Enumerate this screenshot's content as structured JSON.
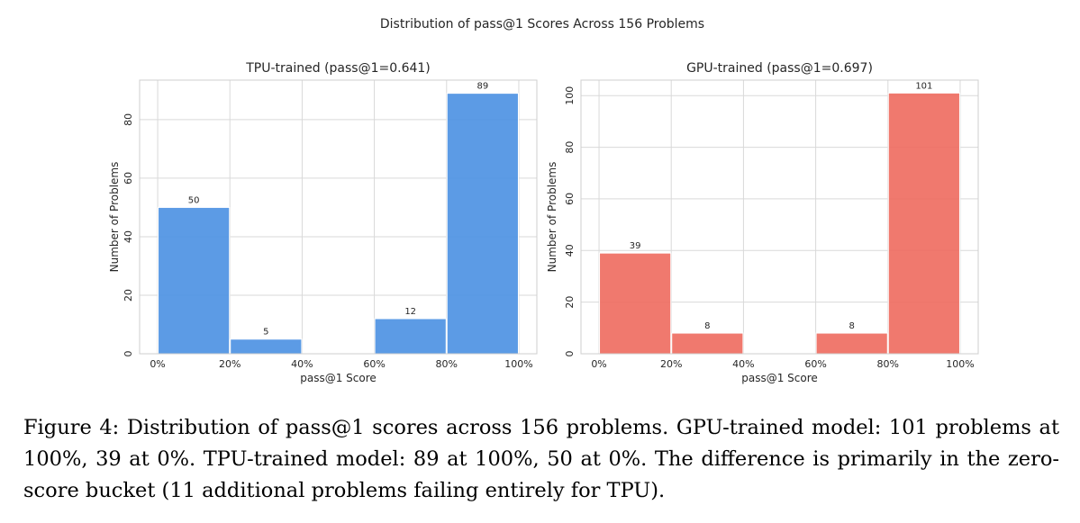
{
  "figure": {
    "suptitle": "Distribution of pass@1 Scores Across 156 Problems",
    "caption": "Figure 4: Distribution of pass@1 scores across 156 problems. GPU-trained model: 101 problems at 100%, 39 at 0%. TPU-trained model: 89 at 100%, 50 at 0%. The difference is primarily in the zero-score bucket (11 additional problems failing entirely for TPU)."
  },
  "chart_data": [
    {
      "type": "bar",
      "title": "TPU-trained (pass@1=0.641)",
      "xlabel": "pass@1 Score",
      "ylabel": "Number of Problems",
      "bin_edges": [
        0,
        0.2,
        0.4,
        0.6,
        0.8,
        1.0
      ],
      "values": [
        50,
        5,
        0,
        12,
        89
      ],
      "data_labels": [
        "50",
        "5",
        "",
        "12",
        "89"
      ],
      "x_ticks": [
        0,
        0.2,
        0.4,
        0.6,
        0.8,
        1.0
      ],
      "x_tick_labels": [
        "0%",
        "20%",
        "40%",
        "60%",
        "80%",
        "100%"
      ],
      "y_ticks": [
        0,
        20,
        40,
        60,
        80
      ],
      "y_tick_labels": [
        "0",
        "20",
        "40",
        "60",
        "80"
      ],
      "xlim": [
        -0.05,
        1.05
      ],
      "ylim": [
        0,
        93.5
      ],
      "color": "#4a90e2",
      "grid": true
    },
    {
      "type": "bar",
      "title": "GPU-trained (pass@1=0.697)",
      "xlabel": "pass@1 Score",
      "ylabel": "Number of Problems",
      "bin_edges": [
        0,
        0.2,
        0.4,
        0.6,
        0.8,
        1.0
      ],
      "values": [
        39,
        8,
        0,
        8,
        101
      ],
      "data_labels": [
        "39",
        "8",
        "",
        "8",
        "101"
      ],
      "x_ticks": [
        0,
        0.2,
        0.4,
        0.6,
        0.8,
        1.0
      ],
      "x_tick_labels": [
        "0%",
        "20%",
        "40%",
        "60%",
        "80%",
        "100%"
      ],
      "y_ticks": [
        0,
        20,
        40,
        60,
        80,
        100
      ],
      "y_tick_labels": [
        "0",
        "20",
        "40",
        "60",
        "80",
        "100"
      ],
      "xlim": [
        -0.05,
        1.05
      ],
      "ylim": [
        0,
        106
      ],
      "color": "#ee6a5e",
      "grid": true
    }
  ]
}
